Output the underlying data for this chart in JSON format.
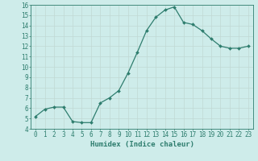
{
  "x": [
    0,
    1,
    2,
    3,
    4,
    5,
    6,
    7,
    8,
    9,
    10,
    11,
    12,
    13,
    14,
    15,
    16,
    17,
    18,
    19,
    20,
    21,
    22,
    23
  ],
  "y": [
    5.2,
    5.9,
    6.1,
    6.1,
    4.7,
    4.6,
    4.6,
    6.5,
    7.0,
    7.7,
    9.4,
    11.4,
    13.5,
    14.8,
    15.5,
    15.8,
    14.3,
    14.1,
    13.5,
    12.7,
    12.0,
    11.8,
    11.8,
    12.0
  ],
  "line_color": "#2e7d6e",
  "marker": "D",
  "marker_size": 2.0,
  "bg_color": "#ceecea",
  "grid_color": "#c0d8d4",
  "xlabel": "Humidex (Indice chaleur)",
  "ylim": [
    4,
    16
  ],
  "xlim": [
    -0.5,
    23.5
  ],
  "yticks": [
    4,
    5,
    6,
    7,
    8,
    9,
    10,
    11,
    12,
    13,
    14,
    15,
    16
  ],
  "xticks": [
    0,
    1,
    2,
    3,
    4,
    5,
    6,
    7,
    8,
    9,
    10,
    11,
    12,
    13,
    14,
    15,
    16,
    17,
    18,
    19,
    20,
    21,
    22,
    23
  ],
  "tick_color": "#2e7d6e",
  "xlabel_fontsize": 6.5,
  "tick_fontsize": 5.5,
  "linewidth": 0.9
}
